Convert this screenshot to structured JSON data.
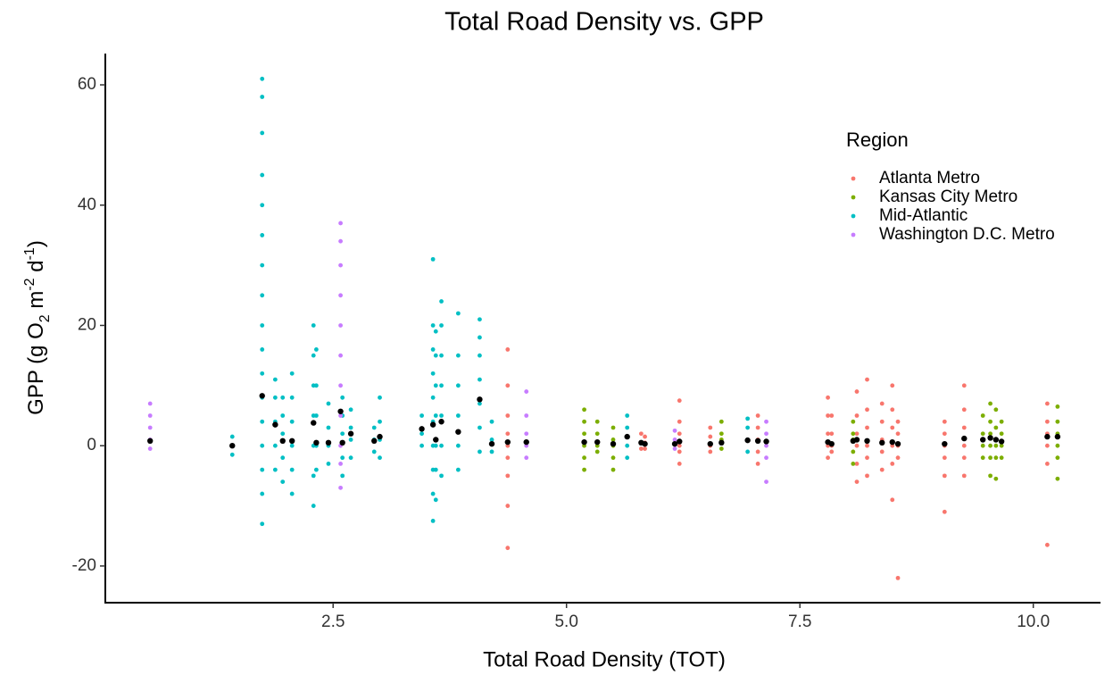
{
  "chart_data": {
    "type": "scatter",
    "title": "Total Road Density vs. GPP",
    "xlabel": "Total Road Density (TOT)",
    "ylabel_parts": [
      "GPP (g O",
      "2",
      " m",
      "-2",
      " d",
      "-1",
      ")"
    ],
    "legend_title": "Region",
    "xlim": [
      0.06,
      10.72
    ],
    "ylim": [
      -26.1,
      65.2
    ],
    "xticks": [
      2.5,
      {
        "value": 5,
        "label": "5.0"
      },
      7.5,
      {
        "value": 10,
        "label": "10.0"
      }
    ],
    "yticks": [
      -20,
      0,
      20,
      40,
      60
    ],
    "grid": false,
    "legend_position": "right",
    "series": [
      {
        "name": "Atlanta Metro",
        "color": "#F8766D",
        "x": [
          4.37,
          4.37,
          4.37,
          4.37,
          4.37,
          4.37,
          4.37,
          4.37,
          4.37,
          5.8,
          5.8,
          5.8,
          5.84,
          5.84,
          5.84,
          6.21,
          6.21,
          6.21,
          6.21,
          6.21,
          6.21,
          6.54,
          6.54,
          6.54,
          6.54,
          7.05,
          7.05,
          7.05,
          7.05,
          7.05,
          7.8,
          7.8,
          7.8,
          7.8,
          7.8,
          7.84,
          7.84,
          7.84,
          7.84,
          8.11,
          8.11,
          8.11,
          8.11,
          8.11,
          8.11,
          8.22,
          8.22,
          8.22,
          8.22,
          8.22,
          8.22,
          8.38,
          8.38,
          8.38,
          8.38,
          8.38,
          8.49,
          8.49,
          8.49,
          8.49,
          8.49,
          8.49,
          8.55,
          8.55,
          8.55,
          8.55,
          8.55,
          9.05,
          9.05,
          9.05,
          9.05,
          9.05,
          9.05,
          9.26,
          9.26,
          9.26,
          9.26,
          9.26,
          9.26,
          10.15,
          10.15,
          10.15,
          10.15,
          10.15,
          10.15
        ],
        "values": [
          -17,
          -10,
          -5,
          -2,
          0,
          2,
          5,
          10,
          16,
          -0.5,
          0.5,
          2,
          -0.5,
          0.5,
          1.5,
          -3,
          -1,
          0,
          2,
          4,
          7.5,
          -1,
          0,
          1.5,
          3,
          -3,
          -1,
          1,
          3,
          5,
          -2,
          0,
          2,
          5,
          8,
          -1,
          0,
          2,
          5,
          -6,
          -3,
          0,
          2,
          5,
          9,
          -5,
          -2,
          0,
          3,
          6,
          11,
          -4,
          -1,
          1,
          4,
          7,
          -9,
          -3,
          0,
          3,
          6,
          10,
          -22,
          -2,
          0,
          2,
          4,
          -11,
          -5,
          -2,
          0,
          2,
          4,
          -5,
          -2,
          0,
          3,
          6,
          10,
          -16.5,
          -3,
          0,
          2,
          4,
          7
        ]
      },
      {
        "name": "Kansas City Metro",
        "color": "#7CAE00",
        "x": [
          5.19,
          5.19,
          5.19,
          5.19,
          5.19,
          5.19,
          5.33,
          5.33,
          5.33,
          5.33,
          5.5,
          5.5,
          5.5,
          5.5,
          5.5,
          6.66,
          6.66,
          6.66,
          6.66,
          8.07,
          8.07,
          8.07,
          8.07,
          8.07,
          9.46,
          9.46,
          9.46,
          9.46,
          9.54,
          9.54,
          9.54,
          9.54,
          9.54,
          9.54,
          9.6,
          9.6,
          9.6,
          9.6,
          9.6,
          9.66,
          9.66,
          9.66,
          9.66,
          10.26,
          10.26,
          10.26,
          10.26,
          10.26,
          10.26
        ],
        "values": [
          -4,
          -2,
          0,
          2,
          4,
          6,
          -1,
          0,
          2,
          4,
          -4,
          -2,
          0,
          1,
          3,
          -0.5,
          1,
          2,
          4,
          -3,
          -1,
          1,
          2,
          4,
          -2,
          0,
          2,
          5,
          -5,
          -2,
          0,
          2,
          4,
          7,
          -5.5,
          -2,
          0,
          3,
          6,
          -2,
          0,
          2,
          4,
          -5.5,
          -2,
          0,
          2,
          4,
          6.5
        ]
      },
      {
        "name": "Mid-Atlantic",
        "color": "#00BFC4",
        "x": [
          1.42,
          1.42,
          1.42,
          1.74,
          1.74,
          1.74,
          1.74,
          1.74,
          1.74,
          1.74,
          1.74,
          1.74,
          1.74,
          1.74,
          1.74,
          1.74,
          1.74,
          1.74,
          1.74,
          1.74,
          1.88,
          1.88,
          1.88,
          1.88,
          1.88,
          1.96,
          1.96,
          1.96,
          1.96,
          1.96,
          2.06,
          2.06,
          2.06,
          2.06,
          2.06,
          2.06,
          2.29,
          2.29,
          2.29,
          2.29,
          2.29,
          2.29,
          2.29,
          2.32,
          2.32,
          2.32,
          2.32,
          2.32,
          2.45,
          2.45,
          2.45,
          2.45,
          2.6,
          2.6,
          2.6,
          2.6,
          2.6,
          2.69,
          2.69,
          2.69,
          2.69,
          2.94,
          2.94,
          2.94,
          3.0,
          3.0,
          3.0,
          3.0,
          3.45,
          3.45,
          3.45,
          3.57,
          3.57,
          3.57,
          3.57,
          3.57,
          3.57,
          3.57,
          3.57,
          3.57,
          3.57,
          3.6,
          3.6,
          3.6,
          3.6,
          3.6,
          3.6,
          3.6,
          3.66,
          3.66,
          3.66,
          3.66,
          3.66,
          3.66,
          3.66,
          3.84,
          3.84,
          3.84,
          3.84,
          3.84,
          3.84,
          4.07,
          4.07,
          4.07,
          4.07,
          4.07,
          4.07,
          4.07,
          4.2,
          4.2,
          4.2,
          5.65,
          5.65,
          5.65,
          5.65,
          6.94,
          6.94,
          6.94,
          6.94
        ],
        "values": [
          -1.5,
          0,
          1.5,
          -13,
          -8,
          -4,
          0,
          4,
          8,
          12,
          16,
          20,
          25,
          30,
          35,
          40,
          45,
          52,
          58,
          61,
          -4,
          0,
          4,
          8,
          11,
          -6,
          -2,
          2,
          5,
          8,
          -8,
          -4,
          0,
          4,
          8,
          12,
          -10,
          -5,
          0,
          5,
          10,
          15,
          20,
          -4,
          0,
          5,
          10,
          16,
          -3,
          0,
          3,
          7,
          -5,
          -2,
          2,
          5,
          8,
          -2,
          1,
          3,
          6,
          -1,
          1,
          3,
          -2,
          1,
          4,
          8,
          0,
          2,
          5,
          -12.5,
          -8,
          -4,
          0,
          4,
          8,
          12,
          16,
          20,
          31,
          -9,
          -4,
          0,
          5,
          10,
          15,
          19,
          -5,
          0,
          5,
          10,
          15,
          20,
          24,
          -4,
          0,
          5,
          10,
          15,
          22,
          -1,
          3,
          7,
          11,
          15,
          18,
          21,
          -1,
          1,
          4,
          -2,
          0,
          3,
          5,
          -1,
          1,
          3,
          4.5
        ]
      },
      {
        "name": "Washington D.C. Metro",
        "color": "#C77CFF",
        "x": [
          0.54,
          0.54,
          0.54,
          0.54,
          0.54,
          2.58,
          2.58,
          2.58,
          2.58,
          2.58,
          2.58,
          2.58,
          2.58,
          2.58,
          2.58,
          2.58,
          4.57,
          4.57,
          4.57,
          4.57,
          4.57,
          6.16,
          6.16,
          6.16,
          7.14,
          7.14,
          7.14,
          7.14,
          7.14
        ],
        "values": [
          -0.5,
          1,
          3,
          5,
          7,
          -7,
          -3,
          0,
          5,
          10,
          15,
          20,
          25,
          30,
          34,
          37,
          -2,
          0,
          2,
          5,
          9,
          -0.5,
          1,
          2.5,
          -6,
          -2,
          0,
          2,
          4
        ]
      }
    ],
    "means": {
      "color": "#000000",
      "x": [
        0.54,
        1.42,
        1.74,
        1.88,
        1.96,
        2.06,
        2.29,
        2.32,
        2.45,
        2.58,
        2.6,
        2.69,
        2.94,
        3.0,
        3.45,
        3.57,
        3.6,
        3.66,
        3.84,
        4.07,
        4.2,
        4.37,
        4.57,
        5.19,
        5.33,
        5.5,
        5.65,
        5.8,
        5.84,
        6.16,
        6.21,
        6.54,
        6.66,
        6.94,
        7.05,
        7.14,
        7.8,
        7.84,
        8.07,
        8.11,
        8.22,
        8.38,
        8.49,
        8.55,
        9.05,
        9.26,
        9.46,
        9.54,
        9.6,
        9.66,
        10.15,
        10.26
      ],
      "values": [
        0.8,
        0,
        8.3,
        3.5,
        0.8,
        0.8,
        3.8,
        0.5,
        0.5,
        5.7,
        0.5,
        2,
        0.8,
        1.5,
        2.8,
        3.5,
        1,
        4,
        2.3,
        7.7,
        0.3,
        0.6,
        0.6,
        0.6,
        0.6,
        0.3,
        1.5,
        0.5,
        0.3,
        0.3,
        0.7,
        0.3,
        0.5,
        0.9,
        0.8,
        0.7,
        0.6,
        0.3,
        0.8,
        1,
        0.8,
        0.5,
        0.6,
        0.3,
        0.3,
        1.2,
        1,
        1.3,
        1,
        0.7,
        1.5,
        1.5
      ]
    }
  }
}
